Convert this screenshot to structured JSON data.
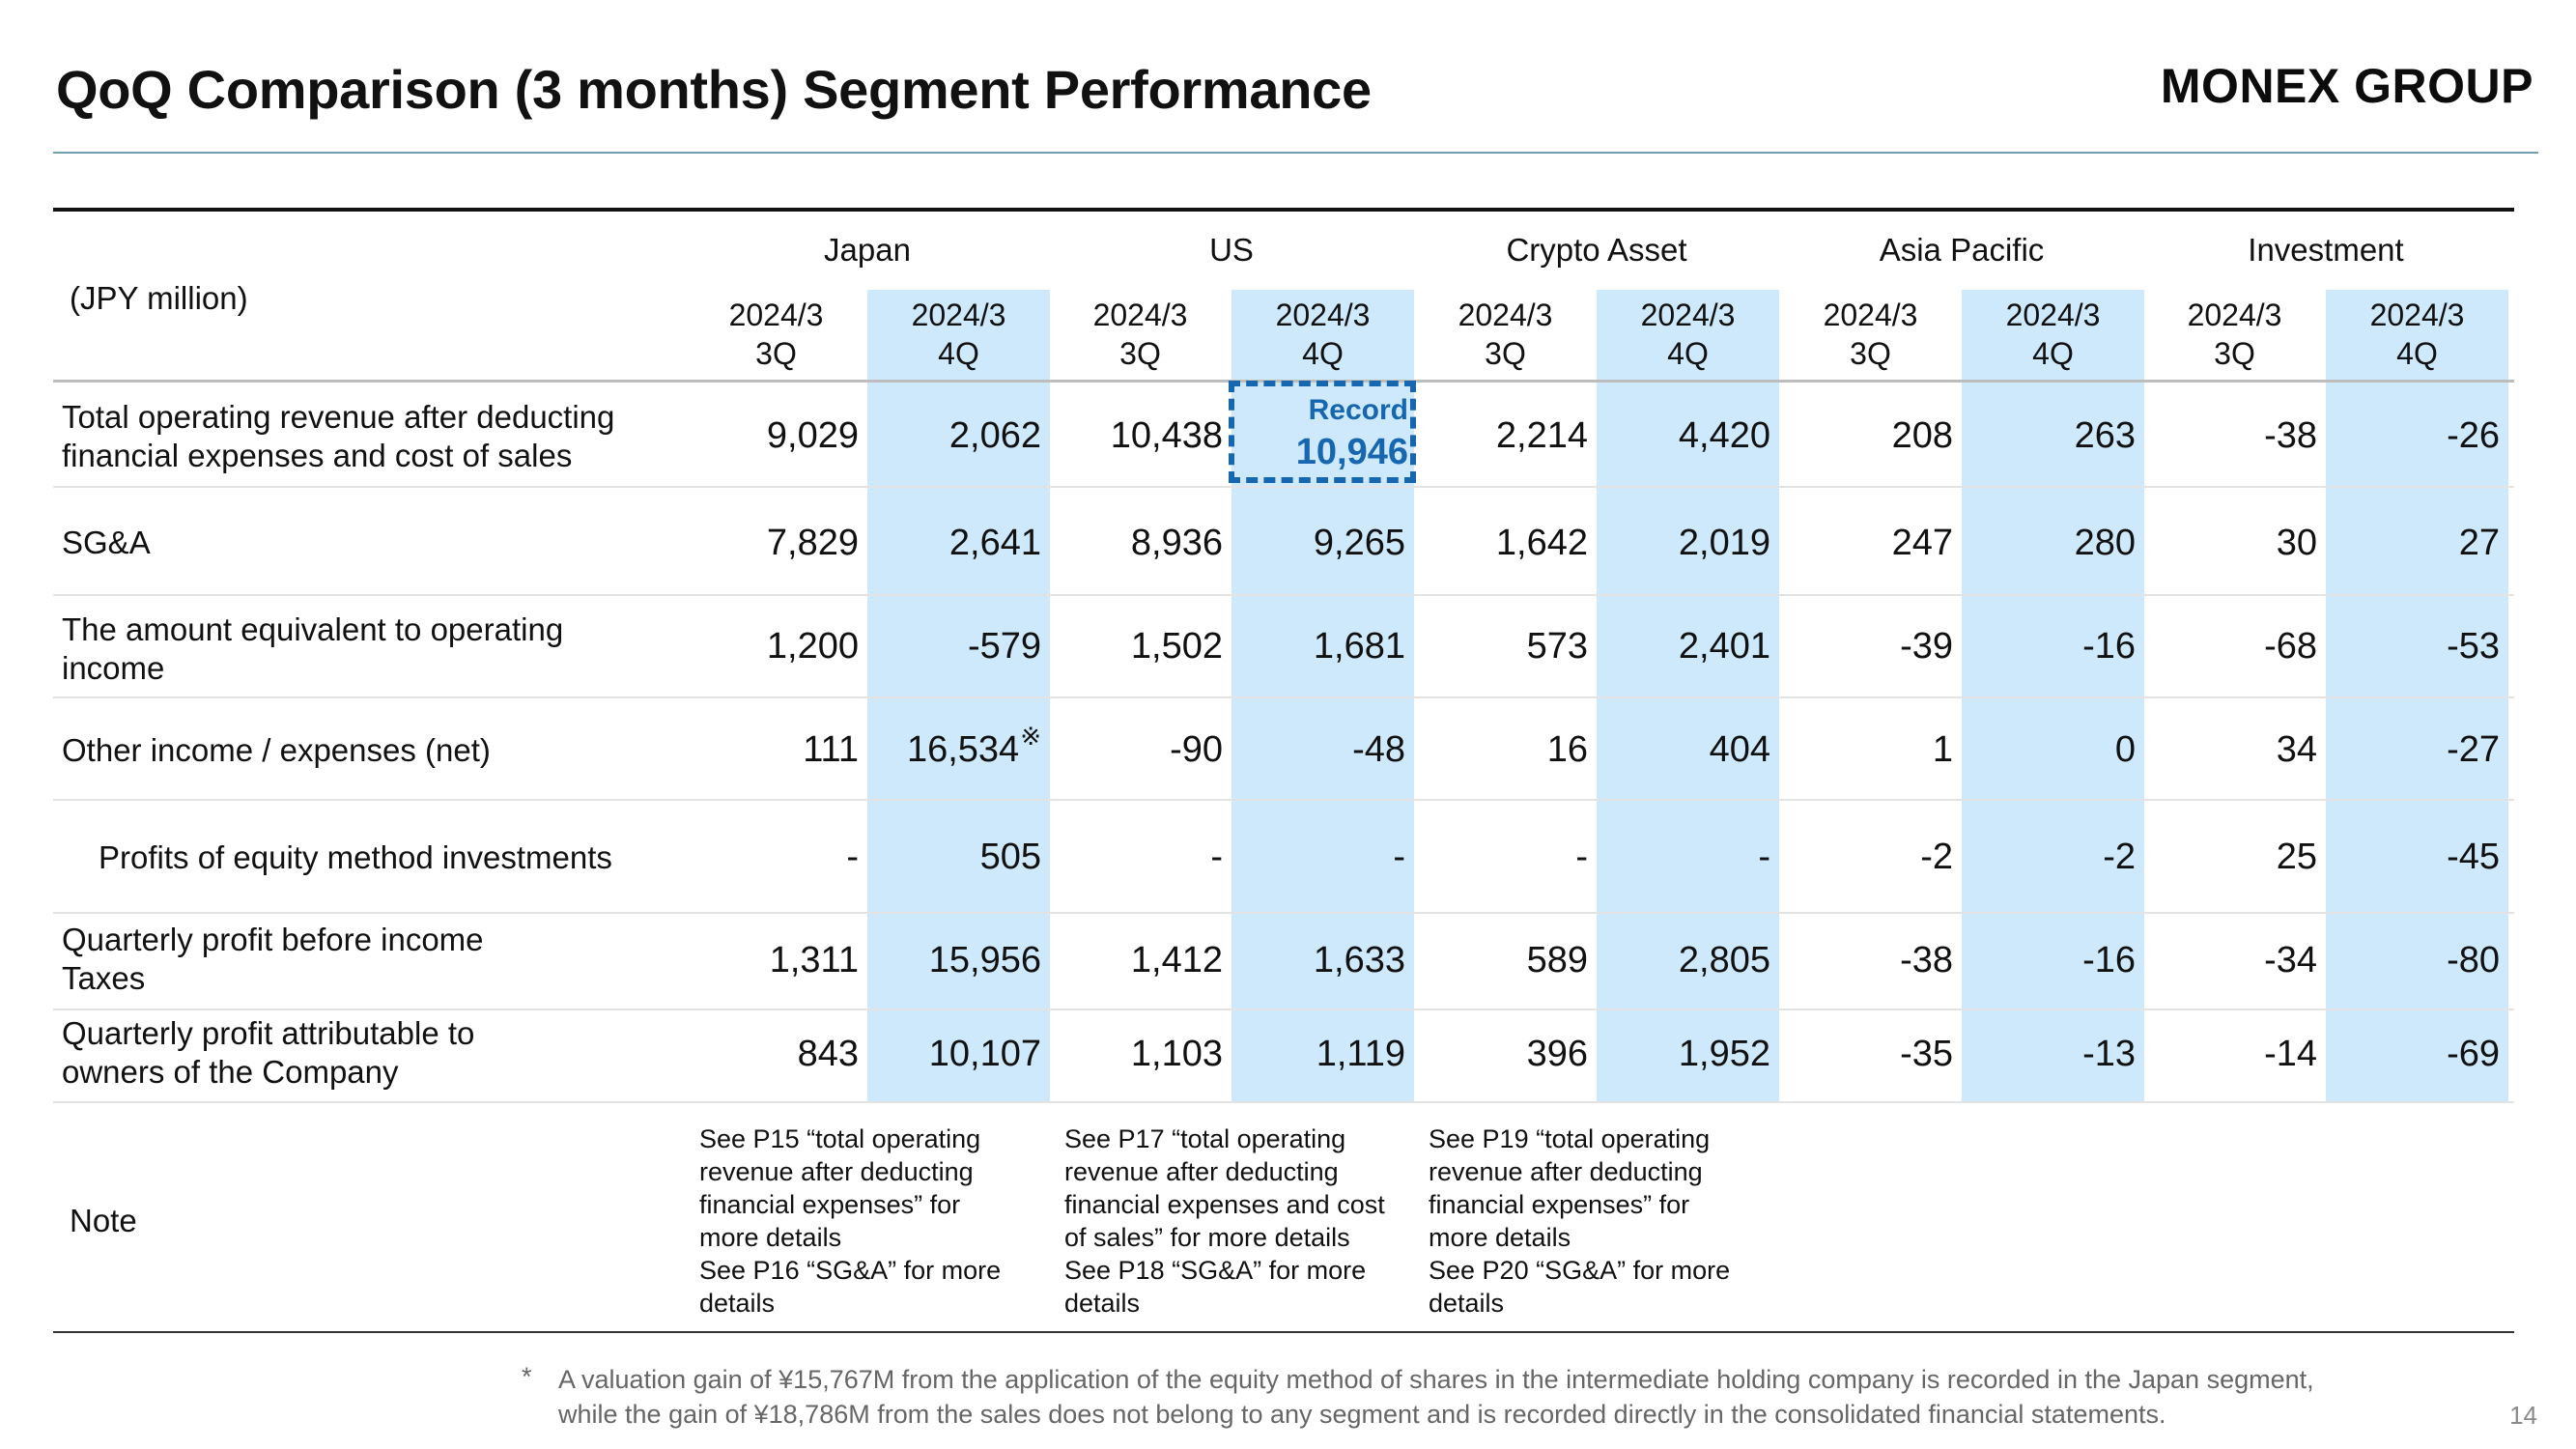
{
  "header": {
    "title": "QoQ Comparison (3 months) Segment Performance",
    "logo": "MONEX GROUP"
  },
  "table": {
    "unit": "(JPY million)",
    "segments": [
      "Japan",
      "US",
      "Crypto Asset",
      "Asia Pacific",
      "Investment"
    ],
    "period_prev_1": "2024/3",
    "period_prev_2": "3Q",
    "period_curr_1": "2024/3",
    "period_curr_2": "4Q",
    "highlight_color": "#cde9fb",
    "rows": [
      {
        "label1": "Total operating revenue after deducting",
        "label2": "financial expenses and cost of sales",
        "values": [
          "9,029",
          "2,062",
          "10,438",
          "",
          "2,214",
          "4,420",
          "208",
          "263",
          "-38",
          "-26"
        ]
      },
      {
        "label1": "SG&A",
        "label2": "",
        "values": [
          "7,829",
          "2,641",
          "8,936",
          "9,265",
          "1,642",
          "2,019",
          "247",
          "280",
          "30",
          "27"
        ]
      },
      {
        "label1": "The amount equivalent to operating",
        "label2": "income",
        "values": [
          "1,200",
          "-579",
          "1,502",
          "1,681",
          "573",
          "2,401",
          "-39",
          "-16",
          "-68",
          "-53"
        ]
      },
      {
        "label1": "Other income / expenses (net)",
        "label2": "",
        "values": [
          "111",
          "16,534",
          "-90",
          "-48",
          "16",
          "404",
          "1",
          "0",
          "34",
          "-27"
        ]
      },
      {
        "label1": "Profits of equity method investments",
        "label2": "",
        "values": [
          "-",
          "505",
          "-",
          "-",
          "-",
          "-",
          "-2",
          "-2",
          "25",
          "-45"
        ]
      },
      {
        "label1": "Quarterly profit before income",
        "label2": "Taxes",
        "values": [
          "1,311",
          "15,956",
          "1,412",
          "1,633",
          "589",
          "2,805",
          "-38",
          "-16",
          "-34",
          "-80"
        ]
      },
      {
        "label1": "Quarterly profit attributable to",
        "label2": "owners of the Company",
        "values": [
          "843",
          "10,107",
          "1,103",
          "1,119",
          "396",
          "1,952",
          "-35",
          "-13",
          "-14",
          "-69"
        ]
      }
    ],
    "record": {
      "label": "Record",
      "value": "10,946",
      "color": "#1666b0"
    },
    "note_mark": "※",
    "note_label": "Note",
    "notes": [
      [
        "See P15 “total operating",
        "revenue after deducting",
        "financial expenses” for",
        "more details",
        "See P16 “SG&A” for more",
        "details"
      ],
      [
        "See P17 “total operating",
        "revenue after deducting",
        "financial expenses and cost",
        "of sales” for more details",
        "See P18 “SG&A” for more",
        "details"
      ],
      [
        "See P19 “total operating",
        "revenue after deducting",
        "financial expenses” for",
        "more details",
        "See P20 “SG&A” for more",
        "details"
      ]
    ]
  },
  "footnote": {
    "star": "*",
    "line1": "A valuation gain of ¥15,767M from the application of the equity method of shares in the intermediate holding company is recorded in the Japan segment,",
    "line2": "while the gain of ¥18,786M from the sales does not belong to any segment and is recorded directly in the consolidated financial statements."
  },
  "page_number": "14"
}
